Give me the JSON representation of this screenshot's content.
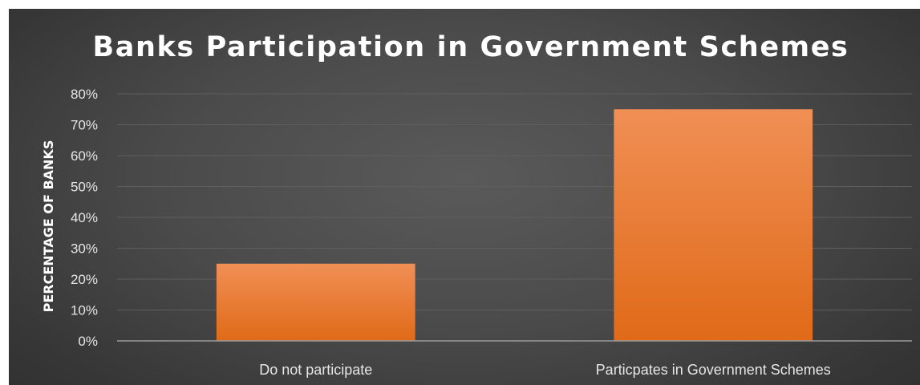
{
  "chart_data": {
    "type": "bar",
    "title": "Banks Participation in Government Schemes",
    "xlabel": "",
    "ylabel": "PERCENTAGE OF BANKS",
    "categories": [
      "Do not participate",
      "Particpates in Government Schemes"
    ],
    "values": [
      0.25,
      0.75
    ],
    "ylim": [
      0,
      0.8
    ],
    "yticks": [
      0,
      0.1,
      0.2,
      0.3,
      0.4,
      0.5,
      0.6,
      0.7,
      0.8
    ],
    "ytick_labels": [
      "0%",
      "10%",
      "20%",
      "30%",
      "40%",
      "50%",
      "60%",
      "70%",
      "80%"
    ],
    "grid": true,
    "legend": "none",
    "colors": {
      "bar_top": "#f08f55",
      "bar_bottom": "#e06a18",
      "background": "#4a4a4a",
      "gridline": "#5e5e5e",
      "axis": "#9a9a9a",
      "text": "#e6e6e6"
    }
  }
}
